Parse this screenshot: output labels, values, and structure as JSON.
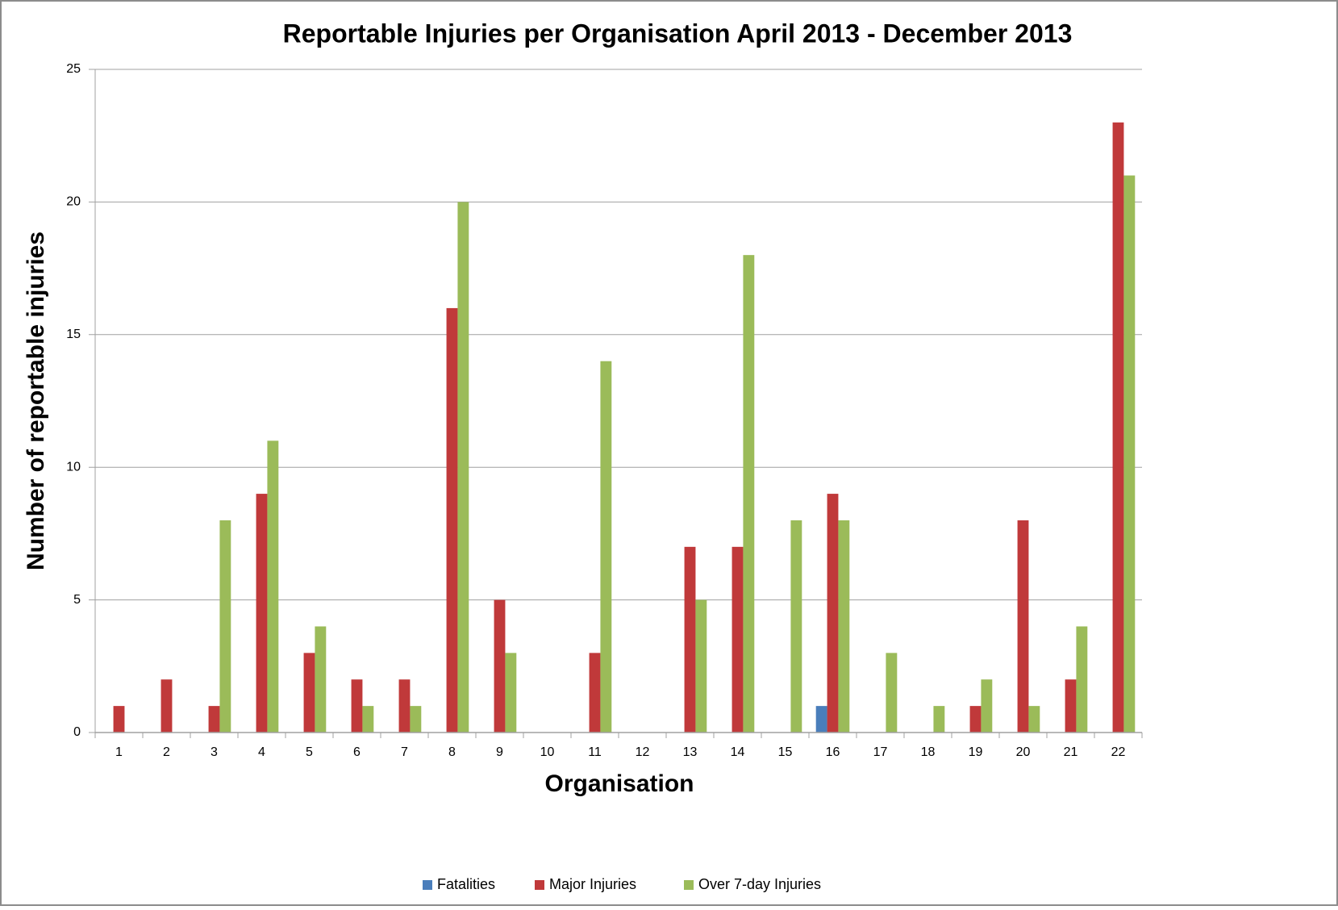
{
  "chart_data": {
    "type": "bar",
    "title": "Reportable Injuries per Organisation April 2013 - December 2013",
    "x_label": "Organisation",
    "y_label": "Number of reportable injuries",
    "categories": [
      "1",
      "2",
      "3",
      "4",
      "5",
      "6",
      "7",
      "8",
      "9",
      "10",
      "11",
      "12",
      "13",
      "14",
      "15",
      "16",
      "17",
      "18",
      "19",
      "20",
      "21",
      "22"
    ],
    "series": [
      {
        "name": "Fatalities",
        "color": "#4a7ebb",
        "values": [
          0,
          0,
          0,
          0,
          0,
          0,
          0,
          0,
          0,
          0,
          0,
          0,
          0,
          0,
          0,
          1,
          0,
          0,
          0,
          0,
          0,
          0
        ]
      },
      {
        "name": "Major Injuries",
        "color": "#c0393a",
        "values": [
          1,
          2,
          1,
          9,
          3,
          2,
          2,
          16,
          5,
          0,
          3,
          0,
          7,
          7,
          0,
          9,
          0,
          0,
          1,
          8,
          2,
          23
        ]
      },
      {
        "name": "Over 7-day Injuries",
        "color": "#9bbb59",
        "values": [
          0,
          0,
          8,
          11,
          4,
          1,
          1,
          20,
          3,
          0,
          14,
          0,
          5,
          18,
          8,
          8,
          3,
          1,
          2,
          1,
          4,
          21
        ]
      }
    ],
    "ylim": [
      0,
      25
    ],
    "yticks": [
      0,
      5,
      10,
      15,
      20,
      25
    ],
    "grid": true,
    "legend": "bottom"
  }
}
